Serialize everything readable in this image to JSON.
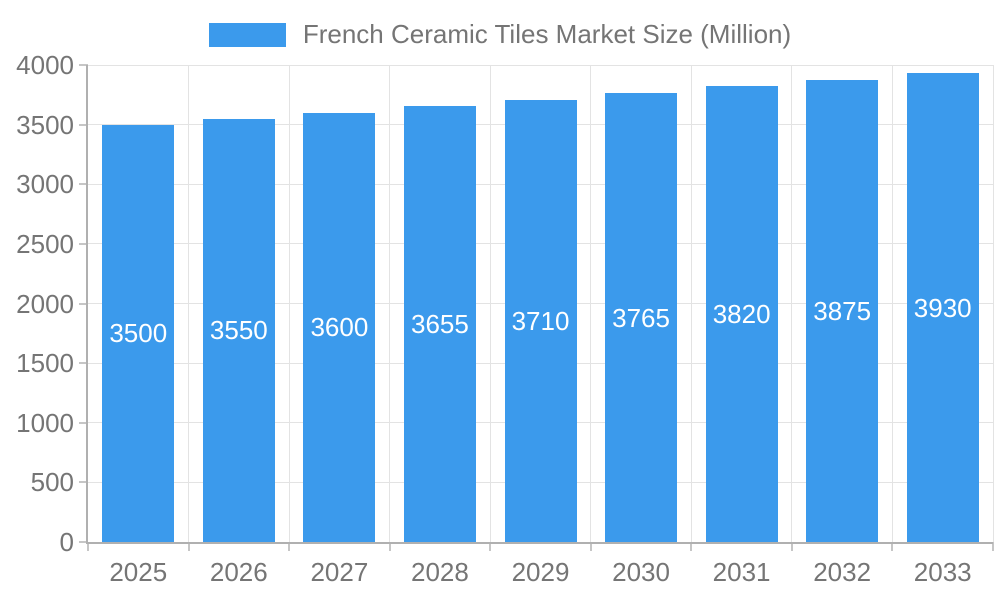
{
  "chart_data": {
    "type": "bar",
    "title": "French Ceramic Tiles Market Size (Million)",
    "legend": {
      "label": "French Ceramic Tiles Market Size (Million)",
      "position": "top-center"
    },
    "categories": [
      "2025",
      "2026",
      "2027",
      "2028",
      "2029",
      "2030",
      "2031",
      "2032",
      "2033"
    ],
    "values": [
      3500,
      3550,
      3600,
      3655,
      3710,
      3765,
      3820,
      3875,
      3930
    ],
    "bar_labels": [
      "3500",
      "3550",
      "3600",
      "3655",
      "3710",
      "3765",
      "3820",
      "3875",
      "3930"
    ],
    "bar_label_position": "inside-center",
    "xlabel": "",
    "ylabel": "",
    "ylim": [
      0,
      4000
    ],
    "yticks": [
      0,
      500,
      1000,
      1500,
      2000,
      2500,
      3000,
      3500,
      4000
    ],
    "grid": true,
    "colors": {
      "bar": "#3b9aec",
      "bar_label_text": "#ffffff",
      "grid_line": "#e3e3e3",
      "axis_line": "#b0b0b0",
      "tick_mark": "#c6c6c6",
      "tick_label_text": "#757575",
      "legend_text": "#757575",
      "background": "#ffffff"
    }
  }
}
